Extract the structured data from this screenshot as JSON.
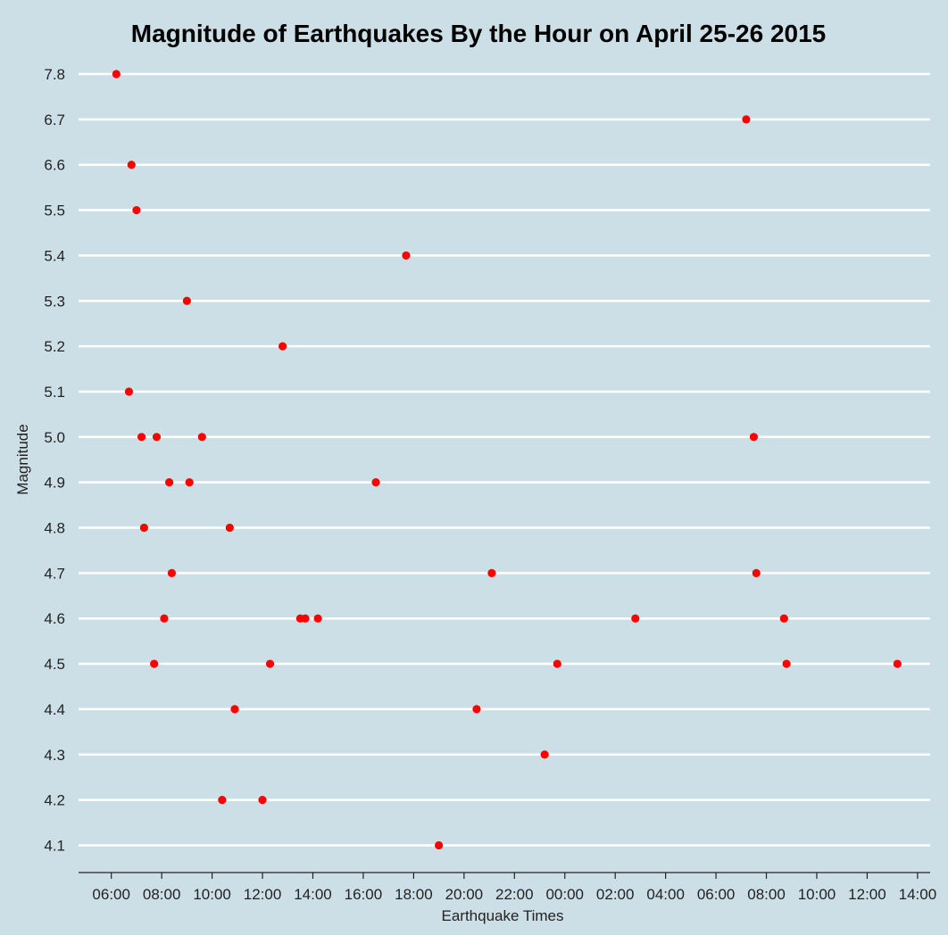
{
  "chart_data": {
    "type": "scatter",
    "title": "Magnitude of Earthquakes By the Hour on  April 25-26 2015",
    "xlabel": "Earthquake Times",
    "ylabel": "Magnitude",
    "x_tick_labels": [
      "06:00",
      "08:00",
      "10:00",
      "12:00",
      "14:00",
      "16:00",
      "18:00",
      "20:00",
      "22:00",
      "00:00",
      "02:00",
      "04:00",
      "06:00",
      "08:00",
      "10:00",
      "12:00",
      "14:00"
    ],
    "x_ticks_hours": [
      6,
      8,
      10,
      12,
      14,
      16,
      18,
      20,
      22,
      24,
      26,
      28,
      30,
      32,
      34,
      36,
      38
    ],
    "x_range_hours": [
      4.7,
      38.5
    ],
    "y_categories": [
      "4.1",
      "4.2",
      "4.3",
      "4.4",
      "4.5",
      "4.6",
      "4.7",
      "4.8",
      "4.9",
      "5.0",
      "5.1",
      "5.2",
      "5.3",
      "5.4",
      "5.5",
      "6.6",
      "6.7",
      "7.8"
    ],
    "grid": true,
    "point_color": "#ff0000",
    "background_color": "#cddfe6",
    "points": [
      {
        "x": 6.2,
        "y": "7.8"
      },
      {
        "x": 31.2,
        "y": "6.7"
      },
      {
        "x": 6.8,
        "y": "6.6"
      },
      {
        "x": 7.0,
        "y": "5.5"
      },
      {
        "x": 17.7,
        "y": "5.4"
      },
      {
        "x": 9.0,
        "y": "5.3"
      },
      {
        "x": 12.8,
        "y": "5.2"
      },
      {
        "x": 6.7,
        "y": "5.1"
      },
      {
        "x": 7.2,
        "y": "5.0"
      },
      {
        "x": 7.8,
        "y": "5.0"
      },
      {
        "x": 9.6,
        "y": "5.0"
      },
      {
        "x": 31.5,
        "y": "5.0"
      },
      {
        "x": 8.3,
        "y": "4.9"
      },
      {
        "x": 9.1,
        "y": "4.9"
      },
      {
        "x": 16.5,
        "y": "4.9"
      },
      {
        "x": 7.3,
        "y": "4.8"
      },
      {
        "x": 10.7,
        "y": "4.8"
      },
      {
        "x": 8.4,
        "y": "4.7"
      },
      {
        "x": 21.1,
        "y": "4.7"
      },
      {
        "x": 31.6,
        "y": "4.7"
      },
      {
        "x": 8.1,
        "y": "4.6"
      },
      {
        "x": 13.5,
        "y": "4.6"
      },
      {
        "x": 13.7,
        "y": "4.6"
      },
      {
        "x": 14.2,
        "y": "4.6"
      },
      {
        "x": 26.8,
        "y": "4.6"
      },
      {
        "x": 32.7,
        "y": "4.6"
      },
      {
        "x": 7.7,
        "y": "4.5"
      },
      {
        "x": 12.3,
        "y": "4.5"
      },
      {
        "x": 23.7,
        "y": "4.5"
      },
      {
        "x": 32.8,
        "y": "4.5"
      },
      {
        "x": 37.2,
        "y": "4.5"
      },
      {
        "x": 10.9,
        "y": "4.4"
      },
      {
        "x": 20.5,
        "y": "4.4"
      },
      {
        "x": 23.2,
        "y": "4.3"
      },
      {
        "x": 10.4,
        "y": "4.2"
      },
      {
        "x": 12.0,
        "y": "4.2"
      },
      {
        "x": 19.0,
        "y": "4.1"
      }
    ]
  }
}
